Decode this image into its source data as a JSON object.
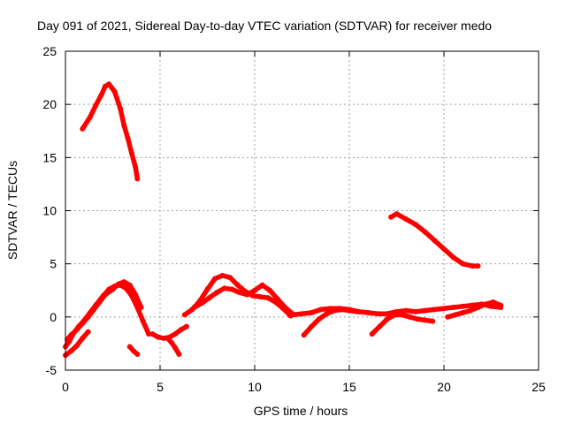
{
  "chart_data": {
    "type": "scatter",
    "title": "Day 091 of 2021, Sidereal Day-to-day VTEC variation (SDTVAR) for receiver medo",
    "xlabel": "GPS time / hours",
    "ylabel": "SDTVAR / TECUs",
    "xlim": [
      0,
      25
    ],
    "ylim": [
      -5,
      25
    ],
    "xticks": [
      "0",
      "5",
      "10",
      "15",
      "20",
      "25"
    ],
    "yticks": [
      "-5",
      "0",
      "5",
      "10",
      "15",
      "20",
      "25"
    ],
    "grid": true,
    "series_color": "#ff0000",
    "series": [
      {
        "name": "arc-high-early",
        "x": [
          0.9,
          1.3,
          1.6,
          1.9,
          2.1,
          2.3,
          2.6,
          2.9,
          3.1,
          3.3,
          3.5,
          3.7,
          3.8
        ],
        "y": [
          17.7,
          18.8,
          19.9,
          20.9,
          21.7,
          21.9,
          21.2,
          19.6,
          18.0,
          16.8,
          15.4,
          14.1,
          13.0
        ]
      },
      {
        "name": "arc-high-late",
        "x": [
          17.2,
          17.5,
          18.0,
          18.5,
          19.0,
          19.5,
          20.0,
          20.5,
          21.0,
          21.5,
          21.8
        ],
        "y": [
          9.4,
          9.7,
          9.2,
          8.7,
          8.0,
          7.2,
          6.4,
          5.6,
          5.0,
          4.8,
          4.8
        ]
      },
      {
        "name": "arc-a",
        "x": [
          0.0,
          0.2,
          0.4,
          0.7,
          1.0,
          1.3,
          1.6,
          2.0,
          2.3,
          2.6,
          2.9,
          3.2,
          3.5,
          3.8,
          4.1,
          4.4
        ],
        "y": [
          -2.8,
          -2.3,
          -1.6,
          -0.9,
          -0.3,
          0.4,
          1.1,
          2.0,
          2.6,
          2.9,
          3.0,
          2.7,
          2.0,
          0.9,
          -0.4,
          -1.6
        ]
      },
      {
        "name": "arc-b",
        "x": [
          0.1,
          0.3,
          0.6,
          0.9,
          1.2,
          1.5,
          1.8,
          2.1,
          2.5,
          2.8,
          3.1,
          3.4,
          3.7,
          4.0
        ],
        "y": [
          -2.1,
          -1.7,
          -1.2,
          -0.6,
          0.0,
          0.7,
          1.4,
          2.1,
          2.6,
          3.1,
          3.3,
          3.0,
          2.1,
          0.9
        ]
      },
      {
        "name": "arc-c",
        "x": [
          0.0,
          0.3,
          0.6,
          0.9,
          1.2
        ],
        "y": [
          -3.6,
          -3.2,
          -2.7,
          -2.0,
          -1.4
        ]
      },
      {
        "name": "arc-d",
        "x": [
          3.4,
          3.6,
          3.8
        ],
        "y": [
          -2.8,
          -3.2,
          -3.5
        ]
      },
      {
        "name": "arc-e",
        "x": [
          4.6,
          4.9,
          5.2,
          5.5,
          5.8,
          6.1,
          6.4
        ],
        "y": [
          -1.6,
          -1.9,
          -2.0,
          -1.9,
          -1.6,
          -1.2,
          -0.9
        ]
      },
      {
        "name": "arc-f",
        "x": [
          5.4,
          5.6,
          5.8,
          6.0
        ],
        "y": [
          -2.0,
          -2.4,
          -2.9,
          -3.5
        ]
      },
      {
        "name": "arc-g",
        "x": [
          6.3,
          6.7,
          7.1,
          7.5,
          7.9,
          8.3,
          8.7,
          9.1,
          9.5,
          9.9,
          10.3,
          10.7,
          11.1,
          11.5,
          11.9
        ],
        "y": [
          0.2,
          0.7,
          1.5,
          2.6,
          3.6,
          3.9,
          3.7,
          3.0,
          2.4,
          2.0,
          1.9,
          1.8,
          1.4,
          0.8,
          0.1
        ]
      },
      {
        "name": "arc-h",
        "x": [
          6.8,
          7.2,
          7.6,
          8.0,
          8.4,
          8.8,
          9.2,
          9.6,
          10.0,
          10.4,
          10.8,
          11.2,
          11.6,
          12.0
        ],
        "y": [
          0.9,
          1.3,
          1.8,
          2.3,
          2.7,
          2.6,
          2.3,
          2.1,
          2.5,
          3.0,
          2.5,
          1.7,
          0.9,
          0.3
        ]
      },
      {
        "name": "arc-i",
        "x": [
          12.0,
          12.5,
          13.0,
          13.5,
          14.0,
          14.5,
          15.0,
          15.5,
          16.0,
          16.5,
          17.0,
          17.5,
          18.0,
          18.5,
          19.0,
          19.5,
          20.0,
          20.5,
          21.0,
          21.5,
          22.0,
          22.5,
          23.0
        ],
        "y": [
          0.2,
          0.3,
          0.4,
          0.7,
          0.8,
          0.8,
          0.7,
          0.5,
          0.4,
          0.3,
          0.3,
          0.5,
          0.6,
          0.5,
          0.6,
          0.7,
          0.8,
          0.9,
          1.0,
          1.1,
          1.2,
          1.0,
          0.9
        ]
      },
      {
        "name": "arc-j",
        "x": [
          12.6,
          13.0,
          13.4,
          13.8,
          14.2,
          14.6,
          15.0,
          15.4
        ],
        "y": [
          -1.7,
          -0.9,
          -0.2,
          0.3,
          0.6,
          0.7,
          0.6,
          0.5
        ]
      },
      {
        "name": "arc-k",
        "x": [
          16.2,
          16.6,
          17.0,
          17.4,
          17.8,
          18.2,
          18.6,
          19.0,
          19.4
        ],
        "y": [
          -1.6,
          -0.9,
          -0.2,
          0.2,
          0.2,
          0.0,
          -0.2,
          -0.3,
          -0.4
        ]
      },
      {
        "name": "arc-l",
        "x": [
          20.2,
          20.6,
          21.0,
          21.4,
          21.8,
          22.2,
          22.6,
          23.0
        ],
        "y": [
          0.0,
          0.2,
          0.4,
          0.6,
          0.9,
          1.2,
          1.4,
          1.1
        ]
      }
    ]
  }
}
